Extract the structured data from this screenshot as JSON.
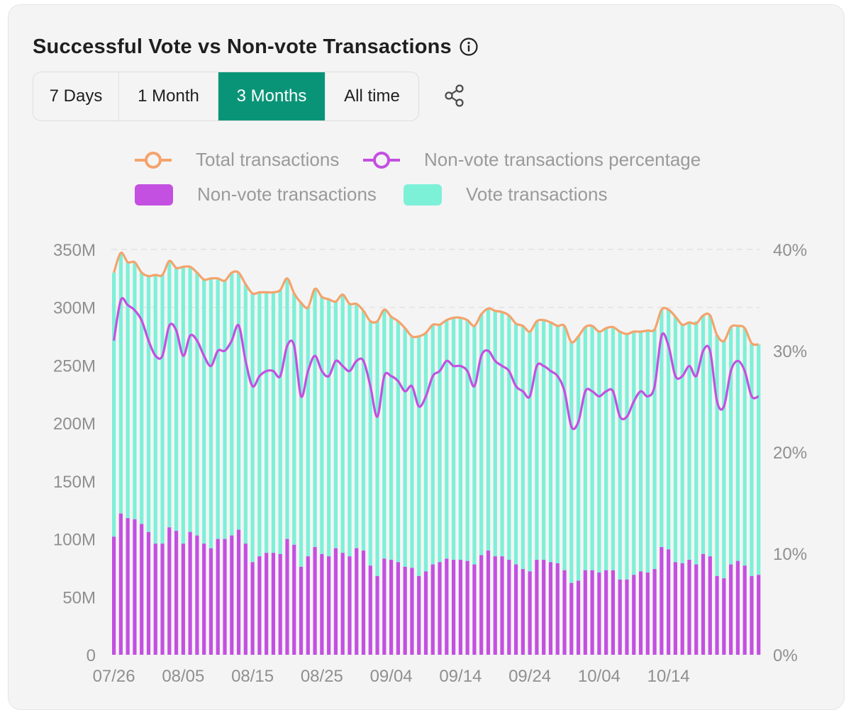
{
  "header": {
    "title": "Successful Vote vs Non-vote Transactions",
    "info_icon": "info-icon",
    "share_icon": "share-icon"
  },
  "ranges": {
    "options": [
      "7 Days",
      "1 Month",
      "3 Months",
      "All time"
    ],
    "selected": "3 Months"
  },
  "legend": [
    {
      "label": "Total transactions",
      "marker": "line-circle",
      "color": "#f4a36c"
    },
    {
      "label": "Non-vote transactions percentage",
      "marker": "line-circle",
      "color": "#c350e0"
    },
    {
      "label": "Non-vote transactions",
      "marker": "rect",
      "color": "#c350e0"
    },
    {
      "label": "Vote transactions",
      "marker": "rect",
      "color": "#7df0d8"
    }
  ],
  "colors": {
    "non_vote": "#c350e0",
    "vote": "#7df0d8",
    "total": "#f4a36c",
    "pct": "#c350e0",
    "accent": "#0a9477",
    "grid": "#e2e2e2"
  },
  "chart_data": {
    "type": "bar",
    "stacked": true,
    "title": "Successful Vote vs Non-vote Transactions",
    "x_start_date": "07/26",
    "x_ticks": [
      "07/26",
      "08/05",
      "08/15",
      "08/25",
      "09/04",
      "09/14",
      "09/24",
      "10/04",
      "10/14"
    ],
    "y_left": {
      "ticks": [
        "0",
        "50M",
        "100M",
        "150M",
        "200M",
        "250M",
        "300M",
        "350M"
      ],
      "range": [
        0,
        350
      ],
      "unit": "M"
    },
    "y_right": {
      "ticks": [
        "0%",
        "10%",
        "20%",
        "30%",
        "40%"
      ],
      "range": [
        0,
        40
      ]
    },
    "series": [
      {
        "name": "Non-vote transactions",
        "type": "bar",
        "axis": "left",
        "values": [
          102,
          122,
          118,
          117,
          113,
          106,
          96,
          96,
          110,
          107,
          96,
          106,
          103,
          96,
          92,
          100,
          100,
          103,
          108,
          96,
          80,
          85,
          88,
          88,
          87,
          100,
          95,
          76,
          85,
          93,
          87,
          85,
          92,
          88,
          85,
          92,
          90,
          77,
          68,
          83,
          82,
          80,
          76,
          75,
          68,
          72,
          78,
          80,
          83,
          82,
          82,
          81,
          78,
          86,
          90,
          85,
          85,
          82,
          78,
          74,
          72,
          82,
          82,
          80,
          79,
          73,
          62,
          64,
          73,
          73,
          71,
          73,
          73,
          65,
          65,
          69,
          72,
          71,
          74,
          93,
          91,
          80,
          79,
          82,
          78,
          87,
          85,
          68,
          66,
          78,
          81,
          77,
          68,
          69
        ]
      },
      {
        "name": "Vote transactions",
        "type": "bar",
        "axis": "left",
        "values": [
          228,
          225,
          221,
          222,
          217,
          221,
          232,
          232,
          230,
          227,
          239,
          229,
          227,
          228,
          233,
          225,
          223,
          227,
          222,
          224,
          232,
          228,
          225,
          225,
          228,
          225,
          217,
          228,
          215,
          223,
          222,
          222,
          213,
          223,
          218,
          211,
          207,
          211,
          220,
          215,
          210,
          208,
          206,
          200,
          207,
          206,
          207,
          205,
          206,
          209,
          209,
          208,
          206,
          208,
          209,
          212,
          211,
          211,
          208,
          210,
          207,
          206,
          207,
          207,
          205,
          211,
          208,
          211,
          210,
          211,
          208,
          209,
          210,
          214,
          212,
          210,
          207,
          209,
          207,
          205,
          207,
          212,
          206,
          205,
          210,
          206,
          208,
          208,
          205,
          205,
          203,
          205,
          201,
          199
        ]
      },
      {
        "name": "Total transactions",
        "type": "line",
        "axis": "left",
        "values": [
          330,
          347,
          339,
          339,
          330,
          327,
          328,
          328,
          340,
          334,
          335,
          335,
          330,
          324,
          325,
          325,
          323,
          330,
          330,
          320,
          312,
          313,
          313,
          313,
          315,
          325,
          312,
          304,
          300,
          316,
          309,
          307,
          305,
          311,
          303,
          303,
          297,
          288,
          288,
          298,
          292,
          288,
          282,
          275,
          275,
          278,
          285,
          285,
          289,
          291,
          291,
          289,
          284,
          294,
          299,
          297,
          296,
          293,
          286,
          284,
          279,
          288,
          289,
          287,
          284,
          284,
          270,
          275,
          283,
          284,
          279,
          282,
          283,
          279,
          277,
          279,
          279,
          280,
          281,
          298,
          298,
          292,
          285,
          287,
          286,
          293,
          293,
          276,
          271,
          283,
          284,
          282,
          269,
          268
        ]
      },
      {
        "name": "Non-vote transactions percentage",
        "type": "line",
        "axis": "right",
        "values": [
          31.0,
          35.0,
          34.5,
          34.0,
          33.0,
          31.0,
          29.5,
          29.5,
          32.5,
          32.0,
          29.5,
          31.5,
          31.0,
          29.5,
          28.5,
          30.0,
          30.0,
          31.0,
          32.5,
          29.0,
          26.5,
          27.5,
          28.0,
          28.0,
          27.5,
          30.5,
          30.5,
          25.5,
          28.0,
          29.5,
          28.0,
          27.5,
          29.0,
          28.5,
          28.0,
          29.0,
          29.0,
          26.5,
          23.5,
          27.5,
          27.5,
          27.0,
          26.0,
          26.5,
          24.5,
          25.5,
          27.5,
          28.0,
          29.0,
          28.5,
          28.5,
          28.0,
          26.5,
          29.5,
          30.0,
          29.0,
          28.5,
          28.0,
          26.5,
          26.0,
          25.5,
          28.5,
          28.5,
          28.0,
          27.5,
          26.0,
          22.5,
          23.0,
          26.0,
          26.0,
          25.5,
          26.0,
          26.0,
          23.5,
          23.5,
          25.0,
          26.0,
          25.5,
          26.5,
          31.5,
          30.5,
          27.5,
          27.5,
          28.5,
          27.5,
          30.0,
          30.0,
          25.0,
          24.5,
          28.0,
          29.0,
          28.0,
          25.5,
          25.5
        ]
      }
    ]
  }
}
